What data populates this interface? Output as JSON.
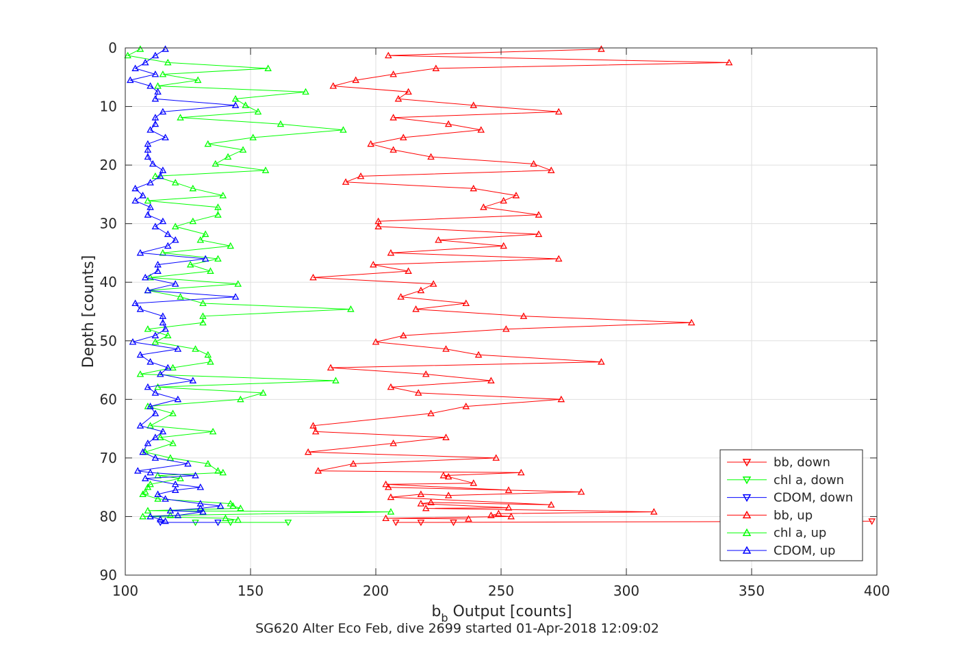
{
  "chart_data": {
    "type": "line",
    "title": "",
    "xlabel": "b_b Output [counts]",
    "xlabel_main": "b",
    "xlabel_sub": "b",
    "xlabel_rest": " Output [counts]",
    "ylabel": "Depth [counts]",
    "caption": "SG620 Alter Eco Feb, dive 2699 started 01-Apr-2018 12:09:02",
    "xlim": [
      100,
      400
    ],
    "ylim": [
      0,
      90
    ],
    "y_reversed": true,
    "grid": true,
    "legend_position": "bottom-right",
    "x_ticks": [
      "100",
      "150",
      "200",
      "250",
      "300",
      "350",
      "400"
    ],
    "y_ticks": [
      "0",
      "10",
      "20",
      "30",
      "40",
      "50",
      "60",
      "70",
      "80",
      "90"
    ],
    "series": [
      {
        "name": "bb, down",
        "color": "#ff0000",
        "marker": "triangle-down",
        "points": [
          [
            398,
            80.8
          ],
          [
            218,
            81.0
          ],
          [
            208,
            81.0
          ],
          [
            231,
            81.0
          ]
        ]
      },
      {
        "name": "chl a, down",
        "color": "#00ff00",
        "marker": "triangle-down",
        "points": [
          [
            128,
            81.0
          ],
          [
            142,
            81.0
          ],
          [
            165,
            81.0
          ]
        ]
      },
      {
        "name": "CDOM, down",
        "color": "#0000ff",
        "marker": "triangle-down",
        "points": [
          [
            114,
            81.0
          ],
          [
            137,
            81.0
          ]
        ]
      },
      {
        "name": "bb, up",
        "color": "#ff0000",
        "marker": "triangle-up",
        "points": [
          [
            290,
            0.2
          ],
          [
            205,
            1.3
          ],
          [
            341,
            2.5
          ],
          [
            224,
            3.5
          ],
          [
            207,
            4.5
          ],
          [
            192,
            5.5
          ],
          [
            183,
            6.5
          ],
          [
            213,
            7.5
          ],
          [
            209,
            8.7
          ],
          [
            239,
            9.8
          ],
          [
            273,
            10.9
          ],
          [
            207,
            11.9
          ],
          [
            229,
            13.0
          ],
          [
            242,
            14.0
          ],
          [
            211,
            15.3
          ],
          [
            198,
            16.4
          ],
          [
            207,
            17.4
          ],
          [
            222,
            18.6
          ],
          [
            263,
            19.8
          ],
          [
            270,
            20.9
          ],
          [
            194,
            21.9
          ],
          [
            188,
            22.9
          ],
          [
            239,
            24.0
          ],
          [
            256,
            25.2
          ],
          [
            251,
            26.1
          ],
          [
            243,
            27.2
          ],
          [
            265,
            28.5
          ],
          [
            201,
            29.6
          ],
          [
            201,
            30.5
          ],
          [
            265,
            31.8
          ],
          [
            225,
            32.8
          ],
          [
            251,
            33.8
          ],
          [
            206,
            35.0
          ],
          [
            273,
            36.0
          ],
          [
            199,
            37.0
          ],
          [
            213,
            38.1
          ],
          [
            175,
            39.2
          ],
          [
            223,
            40.3
          ],
          [
            218,
            41.4
          ],
          [
            210,
            42.5
          ],
          [
            236,
            43.6
          ],
          [
            216,
            44.6
          ],
          [
            259,
            45.8
          ],
          [
            326,
            46.9
          ],
          [
            252,
            48.0
          ],
          [
            211,
            49.1
          ],
          [
            200,
            50.2
          ],
          [
            228,
            51.4
          ],
          [
            241,
            52.4
          ],
          [
            290,
            53.6
          ],
          [
            182,
            54.6
          ],
          [
            220,
            55.7
          ],
          [
            246,
            56.8
          ],
          [
            206,
            57.9
          ],
          [
            217,
            58.9
          ],
          [
            274,
            60.0
          ],
          [
            236,
            61.2
          ],
          [
            222,
            62.4
          ],
          [
            175,
            64.5
          ],
          [
            176,
            65.5
          ],
          [
            228,
            66.5
          ],
          [
            207,
            67.5
          ],
          [
            173,
            69.0
          ],
          [
            248,
            70.0
          ],
          [
            191,
            71.0
          ],
          [
            177,
            72.2
          ],
          [
            258,
            72.5
          ],
          [
            227,
            73.0
          ],
          [
            229,
            73.2
          ],
          [
            239,
            74.3
          ],
          [
            204,
            74.5
          ],
          [
            253,
            75.5
          ],
          [
            205,
            75.0
          ],
          [
            282,
            75.8
          ],
          [
            229,
            76.4
          ],
          [
            218,
            76.2
          ],
          [
            206,
            76.7
          ],
          [
            270,
            78.0
          ],
          [
            222,
            77.6
          ],
          [
            218,
            77.8
          ],
          [
            253,
            78.5
          ],
          [
            220,
            78.6
          ],
          [
            311,
            79.2
          ],
          [
            249,
            79.5
          ],
          [
            246,
            79.8
          ],
          [
            254,
            80.0
          ],
          [
            204,
            80.3
          ],
          [
            237,
            80.4
          ]
        ]
      },
      {
        "name": "chl a, up",
        "color": "#00ff00",
        "marker": "triangle-up",
        "points": [
          [
            106,
            0.2
          ],
          [
            101,
            1.3
          ],
          [
            117,
            2.5
          ],
          [
            157,
            3.5
          ],
          [
            115,
            4.5
          ],
          [
            129,
            5.5
          ],
          [
            113,
            6.5
          ],
          [
            172,
            7.5
          ],
          [
            144,
            8.7
          ],
          [
            148,
            9.8
          ],
          [
            153,
            10.9
          ],
          [
            122,
            11.9
          ],
          [
            162,
            13.0
          ],
          [
            187,
            14.0
          ],
          [
            151,
            15.3
          ],
          [
            133,
            16.4
          ],
          [
            147,
            17.4
          ],
          [
            141,
            18.6
          ],
          [
            136,
            19.8
          ],
          [
            156,
            20.9
          ],
          [
            112,
            21.9
          ],
          [
            120,
            23.0
          ],
          [
            127,
            24.0
          ],
          [
            139,
            25.2
          ],
          [
            109,
            26.1
          ],
          [
            137,
            27.2
          ],
          [
            137,
            28.5
          ],
          [
            127,
            29.6
          ],
          [
            120,
            30.5
          ],
          [
            132,
            31.8
          ],
          [
            130,
            32.8
          ],
          [
            142,
            33.8
          ],
          [
            115,
            35.0
          ],
          [
            137,
            36.0
          ],
          [
            126,
            37.0
          ],
          [
            134,
            38.1
          ],
          [
            110,
            39.2
          ],
          [
            145,
            40.3
          ],
          [
            109,
            41.4
          ],
          [
            122,
            42.5
          ],
          [
            131,
            43.6
          ],
          [
            190,
            44.6
          ],
          [
            131,
            45.8
          ],
          [
            131,
            46.9
          ],
          [
            109,
            48.0
          ],
          [
            117,
            49.1
          ],
          [
            112,
            50.2
          ],
          [
            128,
            51.4
          ],
          [
            133,
            52.4
          ],
          [
            134,
            53.6
          ],
          [
            119,
            54.6
          ],
          [
            106,
            55.7
          ],
          [
            184,
            56.8
          ],
          [
            113,
            57.9
          ],
          [
            155,
            58.9
          ],
          [
            146,
            60.0
          ],
          [
            109,
            61.2
          ],
          [
            119,
            62.4
          ],
          [
            110,
            64.5
          ],
          [
            135,
            65.5
          ],
          [
            114,
            66.5
          ],
          [
            119,
            67.5
          ],
          [
            108,
            69.0
          ],
          [
            118,
            70.0
          ],
          [
            133,
            71.0
          ],
          [
            137,
            72.2
          ],
          [
            139,
            72.5
          ],
          [
            113,
            73.0
          ],
          [
            122,
            73.5
          ],
          [
            110,
            74.5
          ],
          [
            109,
            75.0
          ],
          [
            108,
            75.8
          ],
          [
            107,
            76.2
          ],
          [
            113,
            77.0
          ],
          [
            142,
            77.8
          ],
          [
            143,
            78.2
          ],
          [
            146,
            78.6
          ],
          [
            109,
            79.0
          ],
          [
            206,
            79.2
          ],
          [
            118,
            79.8
          ],
          [
            107,
            80.0
          ],
          [
            140,
            80.3
          ],
          [
            145,
            80.6
          ]
        ]
      },
      {
        "name": "CDOM, up",
        "color": "#0000ff",
        "marker": "triangle-up",
        "points": [
          [
            116,
            0.2
          ],
          [
            112,
            1.3
          ],
          [
            108,
            2.5
          ],
          [
            104,
            3.5
          ],
          [
            112,
            4.5
          ],
          [
            102,
            5.5
          ],
          [
            110,
            6.5
          ],
          [
            113,
            7.5
          ],
          [
            112,
            8.7
          ],
          [
            144,
            9.8
          ],
          [
            115,
            10.9
          ],
          [
            112,
            11.9
          ],
          [
            112,
            13.0
          ],
          [
            110,
            14.0
          ],
          [
            116,
            15.3
          ],
          [
            109,
            16.4
          ],
          [
            109,
            17.4
          ],
          [
            109,
            18.6
          ],
          [
            111,
            19.8
          ],
          [
            115,
            20.9
          ],
          [
            114,
            21.9
          ],
          [
            110,
            23.0
          ],
          [
            104,
            24.0
          ],
          [
            107,
            25.2
          ],
          [
            104,
            26.1
          ],
          [
            110,
            27.2
          ],
          [
            109,
            28.5
          ],
          [
            115,
            29.6
          ],
          [
            112,
            30.5
          ],
          [
            117,
            31.8
          ],
          [
            120,
            32.8
          ],
          [
            117,
            33.8
          ],
          [
            106,
            35.0
          ],
          [
            132,
            36.0
          ],
          [
            113,
            37.0
          ],
          [
            113,
            38.1
          ],
          [
            108,
            39.2
          ],
          [
            120,
            40.3
          ],
          [
            109,
            41.4
          ],
          [
            144,
            42.5
          ],
          [
            104,
            43.6
          ],
          [
            106,
            44.6
          ],
          [
            115,
            45.8
          ],
          [
            115,
            46.9
          ],
          [
            116,
            48.0
          ],
          [
            112,
            49.1
          ],
          [
            103,
            50.2
          ],
          [
            121,
            51.4
          ],
          [
            106,
            52.4
          ],
          [
            110,
            53.6
          ],
          [
            117,
            54.6
          ],
          [
            114,
            55.7
          ],
          [
            127,
            56.8
          ],
          [
            109,
            57.9
          ],
          [
            112,
            58.9
          ],
          [
            121,
            60.0
          ],
          [
            110,
            61.2
          ],
          [
            112,
            62.4
          ],
          [
            106,
            64.5
          ],
          [
            115,
            65.5
          ],
          [
            112,
            66.5
          ],
          [
            109,
            67.5
          ],
          [
            107,
            69.0
          ],
          [
            112,
            70.0
          ],
          [
            125,
            71.0
          ],
          [
            105,
            72.2
          ],
          [
            110,
            72.5
          ],
          [
            128,
            73.0
          ],
          [
            108,
            73.5
          ],
          [
            120,
            74.5
          ],
          [
            130,
            75.0
          ],
          [
            120,
            75.5
          ],
          [
            113,
            76.2
          ],
          [
            116,
            77.0
          ],
          [
            130,
            77.8
          ],
          [
            138,
            78.2
          ],
          [
            130,
            78.6
          ],
          [
            118,
            79.0
          ],
          [
            131,
            79.2
          ],
          [
            121,
            79.8
          ],
          [
            110,
            80.0
          ],
          [
            114,
            80.5
          ],
          [
            116,
            80.8
          ]
        ]
      }
    ]
  }
}
